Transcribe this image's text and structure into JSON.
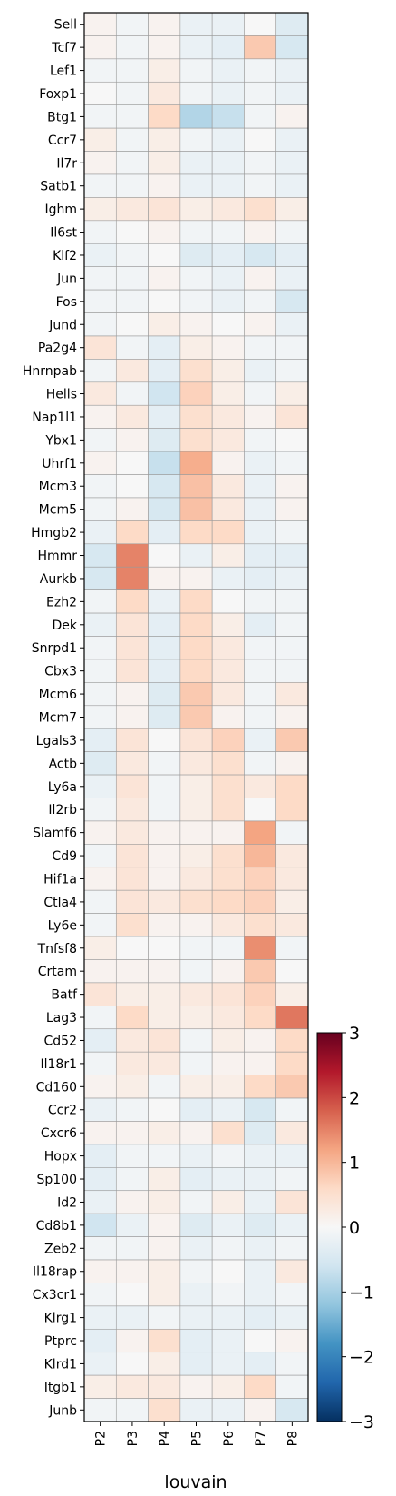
{
  "chart_data": {
    "type": "heatmap",
    "xlabel": "louvain",
    "columns": [
      "P2",
      "P3",
      "P4",
      "P5",
      "P6",
      "P7",
      "P8"
    ],
    "rows": [
      "Sell",
      "Tcf7",
      "Lef1",
      "Foxp1",
      "Btg1",
      "Ccr7",
      "Il7r",
      "Satb1",
      "Ighm",
      "Il6st",
      "Klf2",
      "Jun",
      "Fos",
      "Jund",
      "Pa2g4",
      "Hnrnpab",
      "Hells",
      "Nap1l1",
      "Ybx1",
      "Uhrf1",
      "Mcm3",
      "Mcm5",
      "Hmgb2",
      "Hmmr",
      "Aurkb",
      "Ezh2",
      "Dek",
      "Snrpd1",
      "Cbx3",
      "Mcm6",
      "Mcm7",
      "Lgals3",
      "Actb",
      "Ly6a",
      "Il2rb",
      "Slamf6",
      "Cd9",
      "Hif1a",
      "Ctla4",
      "Ly6e",
      "Tnfsf8",
      "Crtam",
      "Batf",
      "Lag3",
      "Cd52",
      "Il18r1",
      "Cd160",
      "Ccr2",
      "Cxcr6",
      "Hopx",
      "Sp100",
      "Id2",
      "Cd8b1",
      "Zeb2",
      "Il18rap",
      "Cx3cr1",
      "Klrg1",
      "Ptprc",
      "Klrd1",
      "Itgb1",
      "Junb"
    ],
    "values": [
      [
        0.1,
        -0.1,
        0.1,
        -0.2,
        -0.2,
        0.0,
        -0.4
      ],
      [
        0.1,
        -0.1,
        0.1,
        -0.2,
        -0.3,
        0.8,
        -0.5
      ],
      [
        -0.1,
        -0.1,
        0.2,
        -0.1,
        -0.2,
        -0.1,
        -0.2
      ],
      [
        0.0,
        -0.1,
        0.3,
        -0.1,
        -0.2,
        -0.1,
        -0.2
      ],
      [
        -0.1,
        -0.1,
        0.6,
        -0.9,
        -0.7,
        -0.1,
        0.1
      ],
      [
        0.2,
        -0.1,
        0.2,
        -0.1,
        -0.2,
        0.0,
        -0.2
      ],
      [
        0.1,
        -0.1,
        0.2,
        -0.2,
        -0.2,
        -0.1,
        -0.2
      ],
      [
        -0.1,
        -0.1,
        0.1,
        -0.2,
        -0.2,
        -0.1,
        -0.2
      ],
      [
        0.2,
        0.3,
        0.4,
        0.2,
        0.3,
        0.5,
        0.2
      ],
      [
        -0.1,
        0.0,
        0.1,
        -0.1,
        -0.1,
        0.1,
        -0.1
      ],
      [
        -0.2,
        -0.1,
        0.0,
        -0.4,
        -0.3,
        -0.5,
        -0.3
      ],
      [
        -0.1,
        -0.1,
        0.1,
        -0.1,
        -0.2,
        0.1,
        -0.2
      ],
      [
        -0.1,
        -0.1,
        0.0,
        -0.1,
        -0.2,
        -0.1,
        -0.5
      ],
      [
        -0.1,
        0.0,
        0.2,
        0.1,
        0.0,
        0.1,
        -0.2
      ],
      [
        0.4,
        -0.1,
        -0.3,
        0.2,
        0.1,
        -0.1,
        -0.1
      ],
      [
        -0.1,
        0.3,
        -0.3,
        0.5,
        0.2,
        -0.2,
        -0.1
      ],
      [
        0.3,
        -0.1,
        -0.6,
        0.7,
        0.2,
        -0.1,
        0.2
      ],
      [
        0.1,
        0.3,
        -0.3,
        0.5,
        0.3,
        0.1,
        0.4
      ],
      [
        -0.1,
        0.1,
        -0.4,
        0.5,
        0.3,
        -0.1,
        0.0
      ],
      [
        0.1,
        0.0,
        -0.7,
        1.1,
        0.1,
        -0.2,
        -0.1
      ],
      [
        -0.1,
        0.0,
        -0.5,
        0.9,
        0.3,
        -0.2,
        0.1
      ],
      [
        -0.1,
        0.1,
        -0.5,
        0.9,
        0.3,
        -0.2,
        0.1
      ],
      [
        -0.2,
        0.6,
        -0.3,
        0.6,
        0.6,
        -0.2,
        -0.1
      ],
      [
        -0.5,
        1.5,
        0.0,
        -0.2,
        0.2,
        -0.3,
        -0.3
      ],
      [
        -0.5,
        1.5,
        0.1,
        0.1,
        -0.2,
        -0.3,
        -0.2
      ],
      [
        -0.1,
        0.6,
        -0.2,
        0.6,
        0.0,
        -0.1,
        -0.1
      ],
      [
        -0.2,
        0.4,
        -0.3,
        0.6,
        0.2,
        -0.3,
        -0.1
      ],
      [
        -0.1,
        0.4,
        -0.3,
        0.6,
        0.3,
        -0.1,
        -0.1
      ],
      [
        -0.1,
        0.4,
        -0.3,
        0.6,
        0.3,
        -0.1,
        -0.1
      ],
      [
        -0.1,
        0.1,
        -0.4,
        0.8,
        0.3,
        -0.1,
        0.3
      ],
      [
        -0.1,
        0.1,
        -0.4,
        0.8,
        0.1,
        -0.1,
        0.1
      ],
      [
        -0.3,
        0.4,
        0.0,
        0.4,
        0.7,
        -0.2,
        0.8
      ],
      [
        -0.4,
        0.3,
        -0.1,
        0.3,
        0.5,
        -0.1,
        0.1
      ],
      [
        -0.2,
        0.4,
        -0.1,
        0.2,
        0.5,
        0.3,
        0.6
      ],
      [
        -0.1,
        0.3,
        -0.1,
        0.2,
        0.5,
        0.0,
        0.6
      ],
      [
        0.1,
        0.3,
        0.1,
        0.1,
        0.1,
        1.2,
        -0.1
      ],
      [
        -0.1,
        0.4,
        0.1,
        0.2,
        0.5,
        1.0,
        0.3
      ],
      [
        0.1,
        0.4,
        0.1,
        0.3,
        0.5,
        0.7,
        0.3
      ],
      [
        -0.1,
        0.4,
        0.3,
        0.5,
        0.6,
        0.7,
        0.2
      ],
      [
        -0.1,
        0.5,
        0.1,
        0.1,
        0.3,
        0.5,
        0.3
      ],
      [
        0.2,
        0.0,
        0.0,
        -0.1,
        -0.1,
        1.4,
        -0.1
      ],
      [
        0.1,
        0.1,
        0.1,
        -0.1,
        0.1,
        0.8,
        0.0
      ],
      [
        0.4,
        0.2,
        0.2,
        0.3,
        0.4,
        0.7,
        0.2
      ],
      [
        -0.1,
        0.6,
        0.2,
        0.2,
        0.3,
        0.6,
        1.6
      ],
      [
        -0.3,
        0.3,
        0.4,
        -0.1,
        0.2,
        0.1,
        0.6
      ],
      [
        -0.1,
        0.3,
        0.3,
        -0.1,
        0.1,
        0.1,
        0.6
      ],
      [
        0.1,
        0.2,
        -0.1,
        0.2,
        0.2,
        0.6,
        0.8
      ],
      [
        -0.2,
        -0.1,
        0.0,
        -0.3,
        -0.2,
        -0.5,
        -0.1
      ],
      [
        0.1,
        0.1,
        0.2,
        0.1,
        0.5,
        -0.4,
        0.3
      ],
      [
        -0.3,
        -0.1,
        -0.1,
        -0.2,
        -0.1,
        -0.2,
        -0.2
      ],
      [
        -0.3,
        -0.1,
        0.2,
        -0.3,
        -0.2,
        -0.2,
        -0.1
      ],
      [
        -0.2,
        0.1,
        0.2,
        -0.1,
        0.2,
        -0.2,
        0.4
      ],
      [
        -0.6,
        -0.2,
        0.1,
        -0.4,
        -0.2,
        -0.4,
        -0.2
      ],
      [
        -0.1,
        -0.1,
        0.1,
        -0.2,
        -0.1,
        -0.2,
        -0.1
      ],
      [
        0.1,
        0.1,
        0.2,
        -0.1,
        0.0,
        -0.2,
        0.3
      ],
      [
        -0.1,
        0.0,
        0.2,
        -0.2,
        -0.1,
        -0.2,
        -0.1
      ],
      [
        -0.2,
        -0.2,
        -0.1,
        -0.2,
        -0.2,
        -0.3,
        -0.2
      ],
      [
        -0.3,
        0.1,
        0.5,
        -0.3,
        -0.2,
        0.0,
        0.1
      ],
      [
        -0.2,
        0.0,
        0.2,
        -0.3,
        -0.2,
        -0.3,
        -0.1
      ],
      [
        0.2,
        0.3,
        0.3,
        0.1,
        0.2,
        0.6,
        -0.1
      ],
      [
        -0.1,
        -0.1,
        0.5,
        -0.2,
        -0.2,
        0.1,
        -0.5
      ]
    ],
    "colorbar": {
      "min": -3,
      "max": 3,
      "ticks": [
        "-3",
        "-2",
        "-1",
        "0",
        "1",
        "2",
        "3"
      ],
      "colormap": "RdBu_r"
    }
  }
}
